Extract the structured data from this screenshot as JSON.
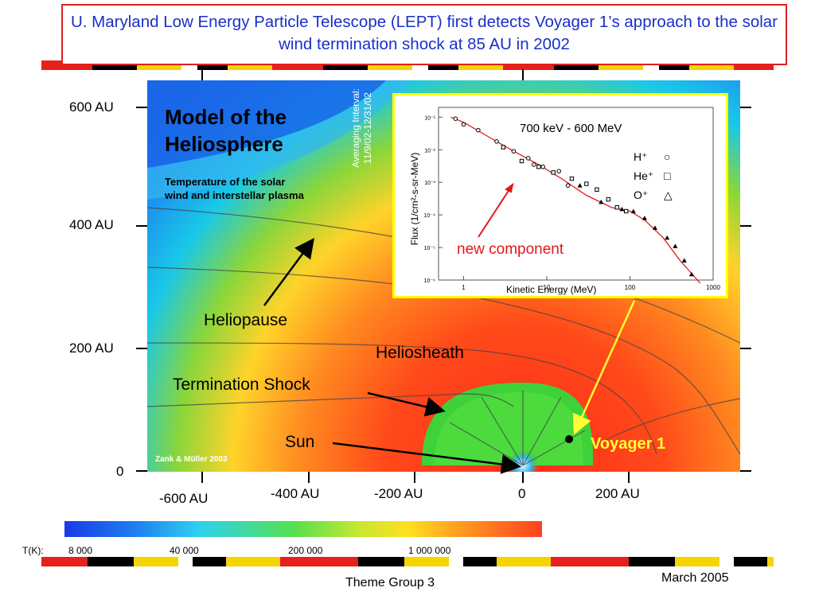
{
  "title": "U. Maryland Low Energy Particle Telescope (LEPT) first detects Voyager 1’s approach to the solar wind termination shock at 85 AU in 2002",
  "model": {
    "heading_line1": "Model of the",
    "heading_line2": "Heliosphere",
    "subtitle_line1": "Temperature of the solar",
    "subtitle_line2": "wind and interstellar plasma",
    "averaging_line1": "Averaging Interval:",
    "averaging_line2": "11/9/02-12/31/02",
    "credit": "Zank & Müller 2003"
  },
  "labels": {
    "heliopause": "Heliopause",
    "heliosheath": "Heliosheath",
    "termination_shock": "Termination Shock",
    "sun": "Sun",
    "voyager": "Voyager 1"
  },
  "y_axis": [
    "600 AU",
    "400 AU",
    "200 AU",
    "0"
  ],
  "x_axis": [
    "-600 AU",
    "-400 AU",
    "-200 AU",
    "0",
    "200 AU"
  ],
  "inset": {
    "energy_range": "700 keV - 600 MeV",
    "legend": [
      {
        "label": "H⁺",
        "symbol": "circle"
      },
      {
        "label": "He⁺",
        "symbol": "square"
      },
      {
        "label": "O⁺",
        "symbol": "triangle"
      }
    ],
    "annotation": "new component",
    "xlabel": "Kinetic Energy (MeV)",
    "ylabel": "Flux (1/cm²-s-sr-MeV)"
  },
  "colorbar": {
    "label": "T(K):",
    "ticks": [
      "8 000",
      "40 000",
      "200 000",
      "1 000 000"
    ]
  },
  "footer": {
    "center": "Theme Group 3",
    "date": "March 2005"
  },
  "colors": {
    "title_blue": "#1a2fc9",
    "title_border": "#e02020",
    "annotation_red": "#e01818",
    "voyager_yellow": "#ffff33",
    "inset_border": "#ffff00"
  },
  "chart_data": {
    "type": "scatter",
    "title": "700 keV - 600 MeV",
    "xlabel": "Kinetic Energy (MeV)",
    "ylabel": "Flux (1/cm²-s-sr-MeV)",
    "xscale": "log",
    "yscale": "log",
    "xlim": [
      0.5,
      1000
    ],
    "ylim": [
      1e-06,
      0.2
    ],
    "x_ticks": [
      "1",
      "10",
      "100",
      "1000"
    ],
    "y_ticks": [
      "10⁻¹",
      "10⁻²",
      "10⁻³",
      "10⁻⁴",
      "10⁻⁵",
      "10⁻⁶"
    ],
    "series": [
      {
        "name": "H⁺",
        "marker": "circle",
        "x": [
          0.8,
          1.0,
          1.5,
          2.5,
          4,
          6,
          7,
          9,
          14,
          18
        ],
        "y": [
          0.09,
          0.06,
          0.04,
          0.018,
          0.009,
          0.0055,
          0.0035,
          0.003,
          0.0022,
          0.0008
        ]
      },
      {
        "name": "He⁺",
        "marker": "square",
        "x": [
          3,
          5,
          8,
          12,
          20,
          30,
          40,
          55,
          70,
          90
        ],
        "y": [
          0.012,
          0.0045,
          0.003,
          0.002,
          0.0013,
          0.0009,
          0.0006,
          0.0003,
          0.00017,
          0.00013
        ]
      },
      {
        "name": "O⁺",
        "marker": "triangle",
        "x": [
          25,
          45,
          80,
          110,
          150,
          200,
          280,
          350,
          450,
          550
        ],
        "y": [
          0.0008,
          0.00025,
          0.00015,
          0.00013,
          8e-05,
          4e-05,
          2e-05,
          1.1e-05,
          4e-06,
          1.5e-06
        ]
      }
    ],
    "fit_line": {
      "x": [
        0.7,
        1,
        2,
        4,
        8,
        15,
        30,
        60,
        100,
        150,
        250,
        400,
        700
      ],
      "y": [
        0.1,
        0.07,
        0.025,
        0.009,
        0.0035,
        0.0013,
        0.0004,
        0.00017,
        0.00013,
        7e-05,
        2e-05,
        4e-06,
        8e-07
      ]
    }
  }
}
